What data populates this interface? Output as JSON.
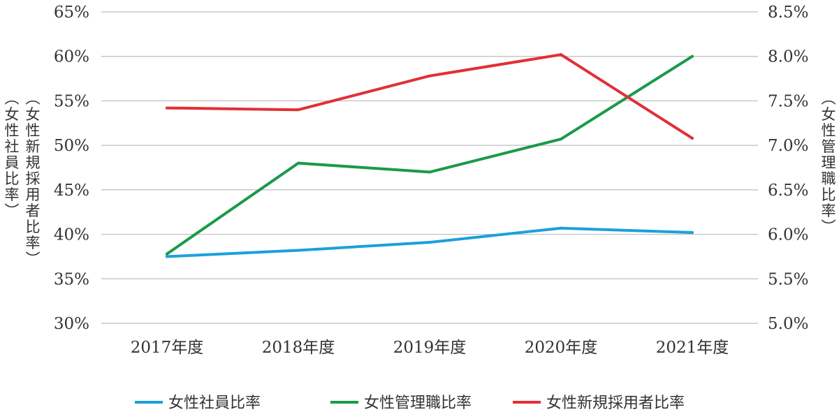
{
  "chart_data": {
    "type": "line",
    "categories": [
      "2017年度",
      "2018年度",
      "2019年度",
      "2020年度",
      "2021年度"
    ],
    "y_left": {
      "label_lines": [
        "（女性社員比率）",
        "（女性新規採用者比率）"
      ],
      "range": [
        30,
        65
      ],
      "ticks": [
        30,
        35,
        40,
        45,
        50,
        55,
        60,
        65
      ],
      "tick_labels": [
        "30%",
        "35%",
        "40%",
        "45%",
        "50%",
        "55%",
        "60%",
        "65%"
      ]
    },
    "y_right": {
      "label": "（女性管理職比率）",
      "range": [
        5.0,
        8.5
      ],
      "ticks": [
        5.0,
        5.5,
        6.0,
        6.5,
        7.0,
        7.5,
        8.0,
        8.5
      ],
      "tick_labels": [
        "5.0%",
        "5.5%",
        "6.0%",
        "6.5%",
        "7.0%",
        "7.5%",
        "8.0%",
        "8.5%"
      ]
    },
    "series": [
      {
        "name": "女性社員比率",
        "axis": "left",
        "color": "#1CA0DC",
        "values": [
          37.5,
          38.2,
          39.1,
          40.7,
          40.2
        ]
      },
      {
        "name": "女性管理職比率",
        "axis": "right",
        "color": "#1A9A48",
        "values": [
          5.78,
          6.8,
          6.7,
          7.07,
          8.0
        ]
      },
      {
        "name": "女性新規採用者比率",
        "axis": "left",
        "color": "#E03036",
        "values": [
          54.2,
          54.0,
          57.8,
          60.2,
          50.8
        ]
      }
    ],
    "grid": true,
    "legend_position": "bottom"
  }
}
